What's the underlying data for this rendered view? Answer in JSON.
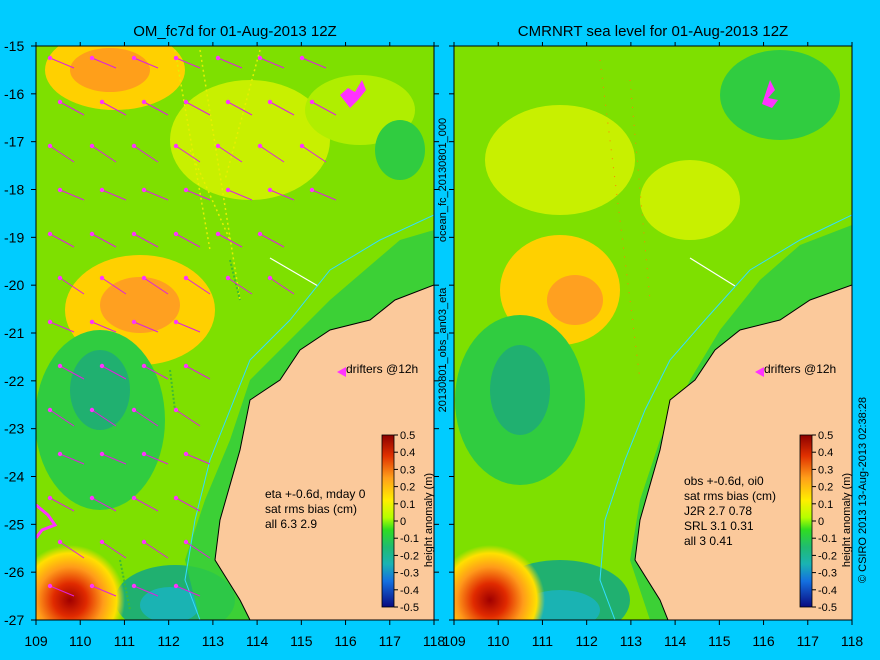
{
  "background": "#00ccff",
  "colors": {
    "land": "#fbc99b",
    "drifter": "#ff33ff",
    "coast": "#000000",
    "contour": "#33ddff"
  },
  "chart_data": [
    {
      "type": "heatmap",
      "title": "OM_fc7d for 01-Aug-2013 12Z",
      "xlim": [
        109,
        118
      ],
      "ylim": [
        -27,
        -15
      ],
      "x_ticks": [
        "109",
        "110",
        "111",
        "112",
        "113",
        "114",
        "115",
        "116",
        "117",
        "118"
      ],
      "y_ticks": [
        "-15",
        "-16",
        "-17",
        "-18",
        "-19",
        "-20",
        "-21",
        "-22",
        "-23",
        "-24",
        "-25",
        "-26",
        "-27"
      ],
      "annotation_lines": [
        "eta +-0.6d, mday 0",
        "sat rms bias (cm)",
        "all 6.3 2.9"
      ],
      "drifters_label": "drifters @12h",
      "colorbar": {
        "label": "height anomaly (m)",
        "range": [
          -0.5,
          0.5
        ],
        "ticks": [
          "0.5",
          "0.4",
          "0.3",
          "0.2",
          "0.1",
          "0",
          "-0.1",
          "-0.2",
          "-0.3",
          "-0.4",
          "-0.5"
        ]
      }
    },
    {
      "type": "heatmap",
      "title": "CMRNRT sea level  for 01-Aug-2013 12Z",
      "xlim": [
        109,
        118
      ],
      "ylim": [
        -27,
        -15
      ],
      "x_ticks": [
        "109",
        "110",
        "111",
        "112",
        "113",
        "114",
        "115",
        "116",
        "117",
        "118"
      ],
      "annotation_lines": [
        "obs +-0.6d, oi0",
        "sat rms bias (cm)",
        "J2R    2.7 0.78",
        "SRL     3.1 0.31",
        "all    3 0.41"
      ],
      "drifters_label": "drifters @12h",
      "colorbar": {
        "label": "height anomaly (m)",
        "range": [
          -0.5,
          0.5
        ],
        "ticks": [
          "0.5",
          "0.4",
          "0.3",
          "0.2",
          "0.1",
          "0",
          "-0.1",
          "-0.2",
          "-0.3",
          "-0.4",
          "-0.5"
        ]
      }
    }
  ],
  "vertical_labels": {
    "left_panel_side": "ocean_fc_20130801_000",
    "left_panel_side2": "20130801_obs_an03_eta",
    "right_edge": "© CSIRO 2013   13-Aug-2013 02:38:28"
  }
}
